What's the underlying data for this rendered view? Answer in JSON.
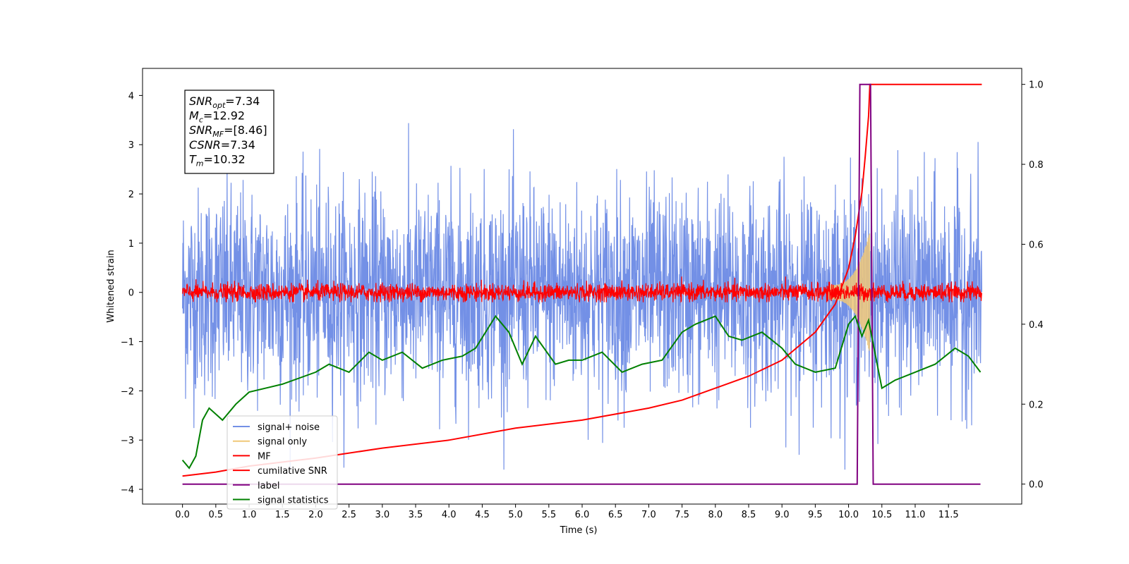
{
  "chart_data": {
    "type": "line",
    "xlabel": "Time (s)",
    "ylabel": "Whitened strain",
    "xlim": [
      -0.6,
      12.6
    ],
    "ylim": [
      -4.3,
      4.55
    ],
    "y2lim": [
      -0.05,
      1.04
    ],
    "x_ticks": [
      "0.0",
      "0.5",
      "1.0",
      "1.5",
      "2.0",
      "2.5",
      "3.0",
      "3.5",
      "4.0",
      "4.5",
      "5.0",
      "5.5",
      "6.0",
      "6.5",
      "7.0",
      "7.5",
      "8.0",
      "8.5",
      "9.0",
      "9.5",
      "10.0",
      "10.5",
      "11.0",
      "11.5"
    ],
    "y_ticks": [
      "4",
      "3",
      "2",
      "1",
      "0",
      "−1",
      "−2",
      "−3",
      "−4"
    ],
    "y2_ticks": [
      "1.0",
      "0.8",
      "0.6",
      "0.4",
      "0.2",
      "0.0"
    ],
    "annotation": [
      {
        "sym": "SNR",
        "sub": "opt",
        "val": "=7.34"
      },
      {
        "sym": "M",
        "sub": "c",
        "val": "=12.92"
      },
      {
        "sym": "SNR",
        "sub": "MF",
        "val": "=[8.46]"
      },
      {
        "sym": "CSNR",
        "sub": "",
        "val": "=7.34"
      },
      {
        "sym": "T",
        "sub": "m",
        "val": "=10.32"
      }
    ],
    "legend_position": "lower-left",
    "series": [
      {
        "name": "signal+ noise",
        "color": "#7390e6",
        "axis": "left",
        "kind": "noise",
        "x_range": [
          0.0,
          12.0
        ],
        "y_range": [
          -3.6,
          4.2
        ]
      },
      {
        "name": "signal only",
        "color": "#f0c878",
        "axis": "left",
        "kind": "chirp",
        "x_range": [
          9.7,
          10.32
        ],
        "peak": 1.1
      },
      {
        "name": "MF",
        "color": "#ff0000",
        "axis": "left",
        "kind": "mf_noise",
        "x_range": [
          0.0,
          12.0
        ],
        "y_range": [
          -0.2,
          0.45
        ]
      },
      {
        "name": "cumilative SNR",
        "color": "#ff0000",
        "axis": "right",
        "x": [
          0.0,
          0.5,
          1.0,
          2.0,
          3.0,
          4.0,
          5.0,
          6.0,
          7.0,
          7.5,
          8.0,
          8.5,
          9.0,
          9.5,
          9.8,
          10.0,
          10.1,
          10.2,
          10.25,
          10.3,
          10.32,
          12.0
        ],
        "y": [
          0.02,
          0.03,
          0.045,
          0.065,
          0.09,
          0.11,
          0.14,
          0.16,
          0.19,
          0.21,
          0.24,
          0.27,
          0.31,
          0.38,
          0.45,
          0.54,
          0.62,
          0.73,
          0.82,
          0.92,
          1.0,
          1.0
        ]
      },
      {
        "name": "label",
        "color": "#800080",
        "axis": "right",
        "x": [
          0.0,
          10.13,
          10.17,
          10.33,
          10.37,
          11.98
        ],
        "y": [
          0.0,
          0.0,
          1.0,
          1.0,
          0.0,
          0.0
        ]
      },
      {
        "name": "signal statistics",
        "color": "#008000",
        "axis": "right",
        "x": [
          0.0,
          0.1,
          0.2,
          0.3,
          0.4,
          0.6,
          0.8,
          1.0,
          1.5,
          2.0,
          2.2,
          2.5,
          2.8,
          3.0,
          3.3,
          3.6,
          3.9,
          4.2,
          4.4,
          4.7,
          4.9,
          5.1,
          5.3,
          5.6,
          5.8,
          6.0,
          6.3,
          6.6,
          6.9,
          7.2,
          7.5,
          7.7,
          8.0,
          8.2,
          8.4,
          8.7,
          9.0,
          9.2,
          9.5,
          9.8,
          10.0,
          10.1,
          10.2,
          10.3,
          10.5,
          10.7,
          11.0,
          11.3,
          11.6,
          11.8,
          11.98
        ],
        "y": [
          0.06,
          0.04,
          0.07,
          0.16,
          0.19,
          0.16,
          0.2,
          0.23,
          0.25,
          0.28,
          0.3,
          0.28,
          0.33,
          0.31,
          0.33,
          0.29,
          0.31,
          0.32,
          0.34,
          0.42,
          0.38,
          0.3,
          0.37,
          0.3,
          0.31,
          0.31,
          0.33,
          0.28,
          0.3,
          0.31,
          0.38,
          0.4,
          0.42,
          0.37,
          0.36,
          0.38,
          0.34,
          0.3,
          0.28,
          0.29,
          0.4,
          0.42,
          0.37,
          0.41,
          0.24,
          0.26,
          0.28,
          0.3,
          0.34,
          0.32,
          0.28
        ]
      }
    ]
  }
}
